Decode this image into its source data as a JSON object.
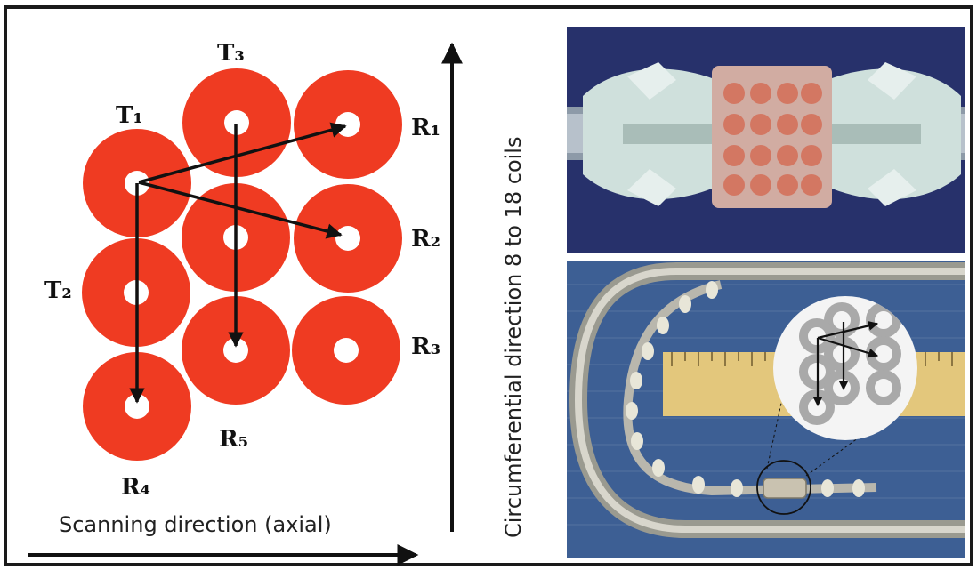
{
  "coil_labels": {
    "T1": "T₁",
    "T2": "T₂",
    "T3": "T₃",
    "R1": "R₁",
    "R2": "R₂",
    "R3": "R₃",
    "R4": "R₄",
    "R5": "R₅"
  },
  "axes": {
    "scanning": "Scanning direction (axial)",
    "circumferential": "Circumferential direction 8 to 18 coils"
  },
  "colors": {
    "coil": "#ef3b22",
    "frame": "#1a1a1a",
    "photo_background": "#27316b",
    "probe_background": "#3d5f94"
  }
}
